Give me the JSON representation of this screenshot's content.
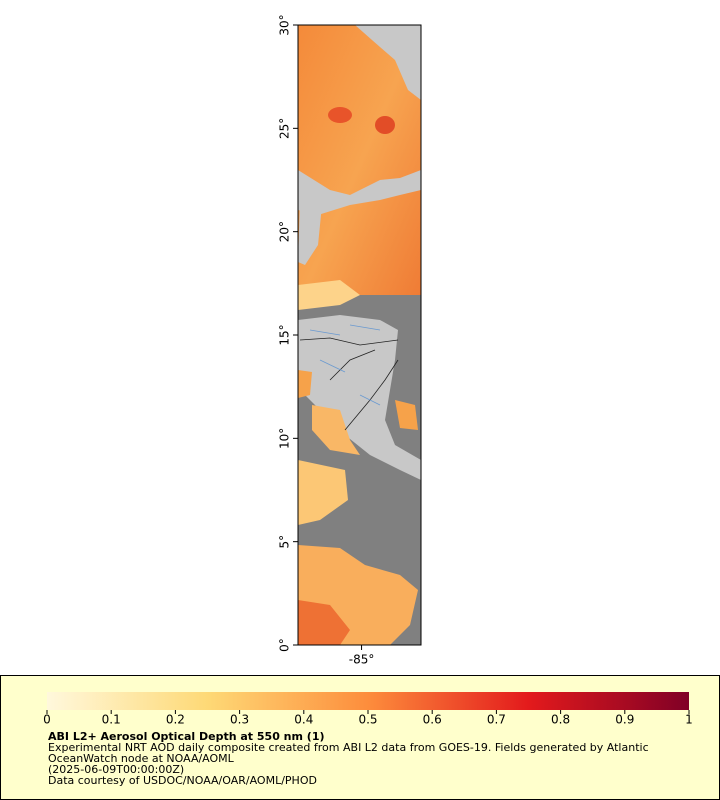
{
  "map": {
    "latlim": [
      0,
      30
    ],
    "lonlim": [
      -88.1,
      -82.1
    ],
    "lat_ticks": [
      {
        "value": 0,
        "label": "0°"
      },
      {
        "value": 5,
        "label": "5°"
      },
      {
        "value": 10,
        "label": "10°"
      },
      {
        "value": 15,
        "label": "15°"
      },
      {
        "value": 20,
        "label": "20°"
      },
      {
        "value": 25,
        "label": "25°"
      },
      {
        "value": 30,
        "label": "30°"
      }
    ],
    "lon_ticks": [
      {
        "value": -85,
        "label": "-85°"
      }
    ]
  },
  "colorbar": {
    "lim": [
      0,
      1
    ],
    "ticks": [
      0,
      0.1,
      0.2,
      0.3,
      0.4,
      0.5,
      0.6,
      0.7,
      0.8,
      0.9,
      1
    ]
  },
  "legend": {
    "title": "ABI L2+ Aerosol Optical Depth at 550 nm (1)",
    "description": "Experimental NRT AOD daily composite created from ABI L2 data from GOES-19. Fields generated by Atlantic OceanWatch node at NOAA/AOML",
    "time": "(2025-06-09T00:00:00Z)",
    "credit": "Data courtesy of USDOC/NOAA/OAR/AOML/PHOD"
  }
}
